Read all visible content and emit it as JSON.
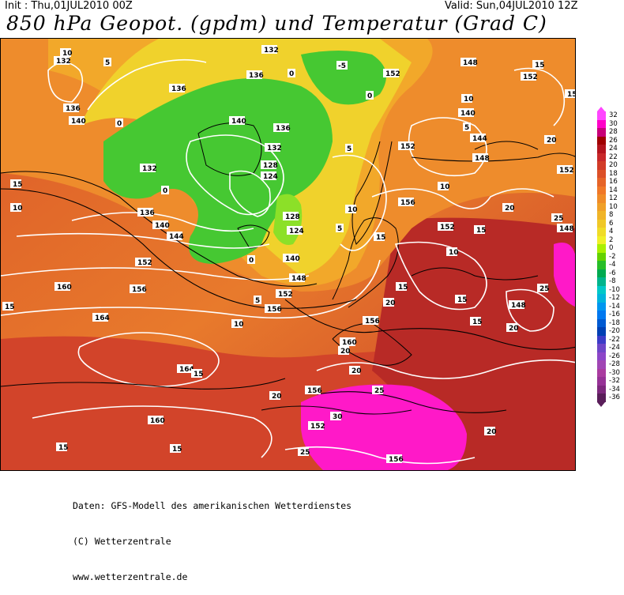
{
  "header": {
    "init": "Init : Thu,01JUL2010 00Z",
    "valid": "Valid: Sun,04JUL2010 12Z",
    "title": "850 hPa Geopot. (gpdm) und Temperatur (Grad C)"
  },
  "legend": {
    "items": [
      {
        "label": "32",
        "color": "#ff45ff"
      },
      {
        "label": "30",
        "color": "#ff00c8"
      },
      {
        "label": "28",
        "color": "#c80078"
      },
      {
        "label": "26",
        "color": "#a00000"
      },
      {
        "label": "24",
        "color": "#b4141e"
      },
      {
        "label": "22",
        "color": "#c8282a"
      },
      {
        "label": "20",
        "color": "#d23c28"
      },
      {
        "label": "18",
        "color": "#dc5028"
      },
      {
        "label": "16",
        "color": "#e66428"
      },
      {
        "label": "14",
        "color": "#f07828"
      },
      {
        "label": "12",
        "color": "#f08c28"
      },
      {
        "label": "10",
        "color": "#f0a028"
      },
      {
        "label": "8",
        "color": "#f0b428"
      },
      {
        "label": "6",
        "color": "#f0c828"
      },
      {
        "label": "4",
        "color": "#f0dc28"
      },
      {
        "label": "2",
        "color": "#f0f028"
      },
      {
        "label": "0",
        "color": "#aaf000"
      },
      {
        "label": "-2",
        "color": "#64d200"
      },
      {
        "label": "-4",
        "color": "#28be28"
      },
      {
        "label": "-6",
        "color": "#00aa50"
      },
      {
        "label": "-8",
        "color": "#00b48c"
      },
      {
        "label": "-10",
        "color": "#00c8c8"
      },
      {
        "label": "-12",
        "color": "#00b4dc"
      },
      {
        "label": "-14",
        "color": "#0096f0"
      },
      {
        "label": "-16",
        "color": "#0078f0"
      },
      {
        "label": "-18",
        "color": "#005ad2"
      },
      {
        "label": "-20",
        "color": "#0040b4"
      },
      {
        "label": "-22",
        "color": "#3c3cc8"
      },
      {
        "label": "-24",
        "color": "#6e46c8"
      },
      {
        "label": "-26",
        "color": "#8c46c8"
      },
      {
        "label": "-28",
        "color": "#a046b4"
      },
      {
        "label": "-30",
        "color": "#aa3ca0"
      },
      {
        "label": "-32",
        "color": "#963296"
      },
      {
        "label": "-34",
        "color": "#7d287d"
      },
      {
        "label": "-36",
        "color": "#5a1e5a"
      }
    ]
  },
  "map": {
    "geopotential_labels": [
      "132",
      "136",
      "128",
      "124",
      "152",
      "156",
      "160",
      "164",
      "148",
      "140",
      "144"
    ],
    "temperature_labels": [
      "0",
      "-5",
      "5",
      "10",
      "15",
      "20",
      "25",
      "30"
    ]
  },
  "footer": {
    "line1": "Daten: GFS-Modell des amerikanischen Wetterdienstes",
    "line2": "(C) Wetterzentrale",
    "line3": "www.wetterzentrale.de"
  }
}
